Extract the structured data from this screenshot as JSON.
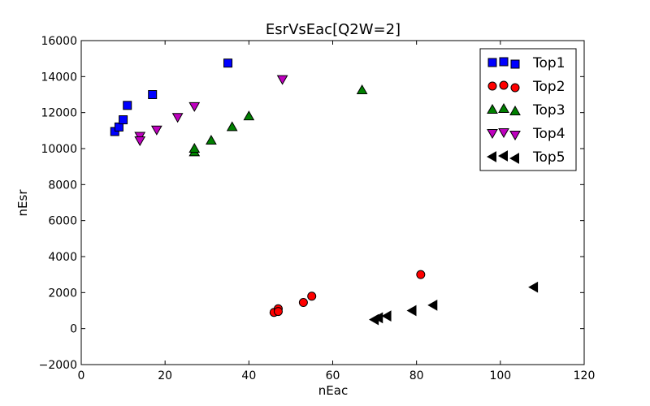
{
  "chart_data": {
    "type": "scatter",
    "title": "EsrVsEac[Q2W=2]",
    "xlabel": "nEac",
    "ylabel": "nEsr",
    "xlim": [
      0,
      120
    ],
    "ylim": [
      -2000,
      16000
    ],
    "xticks": [
      0,
      20,
      40,
      60,
      80,
      100,
      120
    ],
    "yticks": [
      -2000,
      0,
      2000,
      4000,
      6000,
      8000,
      10000,
      12000,
      14000,
      16000
    ],
    "grid": false,
    "legend_position": "top-right",
    "series": [
      {
        "name": "Top1",
        "marker": "square",
        "color": "#0000ff",
        "points": [
          [
            8,
            10950
          ],
          [
            9,
            11200
          ],
          [
            10,
            11600
          ],
          [
            11,
            12400
          ],
          [
            17,
            13000
          ],
          [
            35,
            14750
          ]
        ]
      },
      {
        "name": "Top2",
        "marker": "circle",
        "color": "#ff0000",
        "points": [
          [
            46,
            900
          ],
          [
            47,
            1100
          ],
          [
            47,
            950
          ],
          [
            53,
            1450
          ],
          [
            55,
            1800
          ],
          [
            81,
            3000
          ]
        ]
      },
      {
        "name": "Top3",
        "marker": "triangle-up",
        "color": "#008000",
        "points": [
          [
            27,
            9800
          ],
          [
            27,
            10000
          ],
          [
            31,
            10450
          ],
          [
            36,
            11200
          ],
          [
            40,
            11800
          ],
          [
            67,
            13250
          ]
        ]
      },
      {
        "name": "Top4",
        "marker": "triangle-down",
        "color": "#bf00bf",
        "points": [
          [
            14,
            10700
          ],
          [
            14,
            10450
          ],
          [
            18,
            11050
          ],
          [
            23,
            11750
          ],
          [
            27,
            12350
          ],
          [
            48,
            13850
          ]
        ]
      },
      {
        "name": "Top5",
        "marker": "triangle-left",
        "color": "#000000",
        "points": [
          [
            70,
            500
          ],
          [
            71,
            600
          ],
          [
            73,
            700
          ],
          [
            79,
            1000
          ],
          [
            84,
            1300
          ],
          [
            108,
            2300
          ]
        ]
      }
    ]
  }
}
